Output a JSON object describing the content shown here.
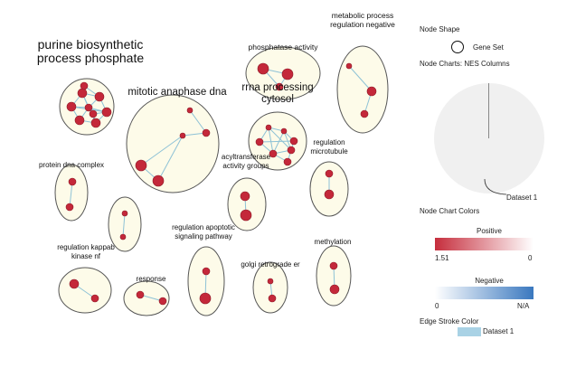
{
  "network": {
    "clusters": [
      {
        "label": [
          "purine biosynthetic",
          "process phosphate"
        ],
        "size": "large"
      },
      {
        "label": [
          "mitotic anaphase dna"
        ],
        "size": "large"
      },
      {
        "label": [
          "phosphatase activity"
        ],
        "size": "small"
      },
      {
        "label": [
          "metabolic process",
          "regulation negative"
        ],
        "size": "small"
      },
      {
        "label": [
          "rrna processing",
          "cytosol"
        ],
        "size": "large"
      },
      {
        "label": [
          "protein dna complex"
        ],
        "size": "small"
      },
      {
        "label": [],
        "size": "small"
      },
      {
        "label": [
          "acyltransferase",
          "activity groups"
        ],
        "size": "small"
      },
      {
        "label": [
          "regulation",
          "microtubule"
        ],
        "size": "small"
      },
      {
        "label": [
          "regulation apoptotic",
          "signaling pathway"
        ],
        "size": "small"
      },
      {
        "label": [
          "methylation"
        ],
        "size": "small"
      },
      {
        "label": [
          "regulation kappab",
          "kinase nf"
        ],
        "size": "small"
      },
      {
        "label": [
          "response"
        ],
        "size": "small"
      },
      {
        "label": [
          "golgi retrograde er"
        ],
        "size": "small"
      }
    ]
  },
  "legend": {
    "node_shape_title": "Node Shape",
    "gene_set_label": "Gene Set",
    "node_charts_title": "Node Charts: NES Columns",
    "dataset_label": "Dataset 1",
    "node_chart_colors_title": "Node Chart Colors",
    "positive_label": "Positive",
    "positive_min": "1.51",
    "positive_max": "0",
    "negative_label": "Negative",
    "negative_min": "0",
    "negative_max": "N/A",
    "edge_stroke_title": "Edge Stroke Color",
    "edge_dataset_label": "Dataset 1",
    "colors": {
      "node_fill": "#c4283a",
      "edge": "#8ec2d6",
      "cluster_fill": "#fdfbe9",
      "positive_start": "#c62e3d",
      "negative_end": "#3a78bf"
    }
  }
}
